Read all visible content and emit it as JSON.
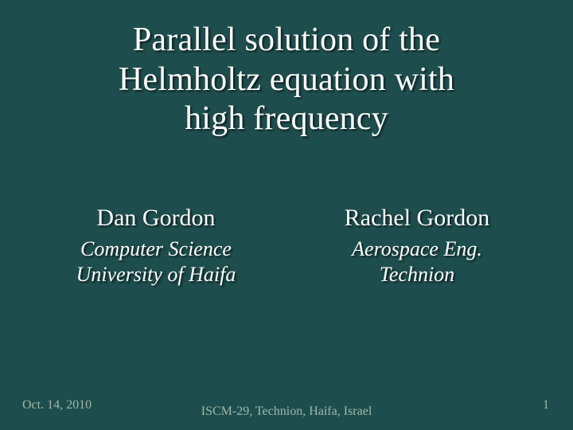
{
  "slide": {
    "background_color": "#1e4d4d",
    "text_color": "#ffffff",
    "footer_color": "#9fb8a8",
    "title": {
      "text_line1": "Parallel solution of the",
      "text_line2": "Helmholtz equation with",
      "text_line3": "high frequency",
      "fontsize": 42,
      "font_weight": 400
    },
    "authors": [
      {
        "name": "Dan Gordon",
        "affiliation_line1": "Computer Science",
        "affiliation_line2": "University of Haifa"
      },
      {
        "name": "Rachel Gordon",
        "affiliation_line1": "Aerospace Eng.",
        "affiliation_line2": "Technion"
      }
    ],
    "author_name_fontsize": 30,
    "author_affil_fontsize": 26,
    "footer": {
      "date": "Oct. 14, 2010",
      "venue": "ISCM-29, Technion, Haifa, Israel",
      "page": "1",
      "fontsize": 16
    }
  }
}
